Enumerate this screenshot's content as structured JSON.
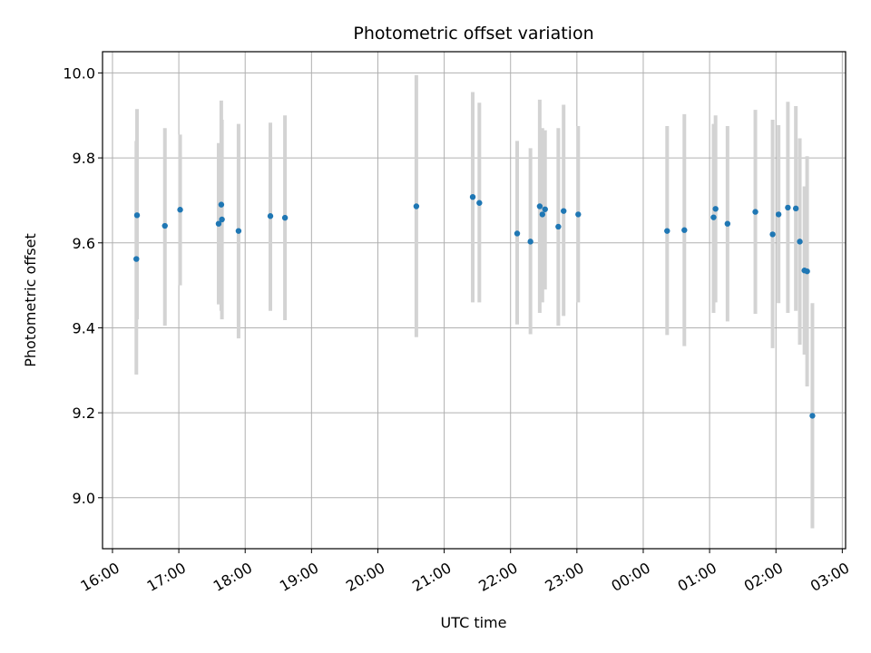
{
  "chart_data": {
    "type": "scatter",
    "title": "Photometric offset variation",
    "xlabel": "UTC time",
    "ylabel": "Photometric offset",
    "x_unit": "hours after 16:00 UTC",
    "xlim": [
      -0.15,
      11.05
    ],
    "ylim": [
      8.88,
      10.05
    ],
    "x_ticks": [
      0,
      1,
      2,
      3,
      4,
      5,
      6,
      7,
      8,
      9,
      10,
      11
    ],
    "x_tick_labels": [
      "16:00",
      "17:00",
      "18:00",
      "19:00",
      "20:00",
      "21:00",
      "22:00",
      "23:00",
      "00:00",
      "01:00",
      "02:00",
      "03:00"
    ],
    "y_ticks": [
      9.0,
      9.2,
      9.4,
      9.6,
      9.8,
      10.0
    ],
    "y_tick_labels": [
      "9.0",
      "9.2",
      "9.4",
      "9.6",
      "9.8",
      "10.0"
    ],
    "grid": true,
    "colors": {
      "point": "#1f77b4",
      "errorbar": "#d3d3d3",
      "grid": "#b0b0b0"
    },
    "series": [
      {
        "points": [
          {
            "x": 0.36,
            "y": 9.562,
            "err_lo": 9.29,
            "err_hi": 9.84
          },
          {
            "x": 0.37,
            "y": 9.665,
            "err_lo": 9.42,
            "err_hi": 9.915
          },
          {
            "x": 0.79,
            "y": 9.64,
            "err_lo": 9.405,
            "err_hi": 9.87
          },
          {
            "x": 1.02,
            "y": 9.678,
            "err_lo": 9.5,
            "err_hi": 9.855
          },
          {
            "x": 1.6,
            "y": 9.645,
            "err_lo": 9.455,
            "err_hi": 9.835
          },
          {
            "x": 1.64,
            "y": 9.69,
            "err_lo": 9.44,
            "err_hi": 9.935
          },
          {
            "x": 1.65,
            "y": 9.655,
            "err_lo": 9.42,
            "err_hi": 9.89
          },
          {
            "x": 1.9,
            "y": 9.628,
            "err_lo": 9.375,
            "err_hi": 9.88
          },
          {
            "x": 2.38,
            "y": 9.663,
            "err_lo": 9.44,
            "err_hi": 9.883
          },
          {
            "x": 2.6,
            "y": 9.659,
            "err_lo": 9.418,
            "err_hi": 9.9
          },
          {
            "x": 4.58,
            "y": 9.686,
            "err_lo": 9.378,
            "err_hi": 9.995
          },
          {
            "x": 5.43,
            "y": 9.708,
            "err_lo": 9.46,
            "err_hi": 9.955
          },
          {
            "x": 5.53,
            "y": 9.694,
            "err_lo": 9.46,
            "err_hi": 9.93
          },
          {
            "x": 6.1,
            "y": 9.622,
            "err_lo": 9.408,
            "err_hi": 9.84
          },
          {
            "x": 6.3,
            "y": 9.603,
            "err_lo": 9.385,
            "err_hi": 9.823
          },
          {
            "x": 6.44,
            "y": 9.686,
            "err_lo": 9.435,
            "err_hi": 9.937
          },
          {
            "x": 6.48,
            "y": 9.667,
            "err_lo": 9.46,
            "err_hi": 9.87
          },
          {
            "x": 6.52,
            "y": 9.679,
            "err_lo": 9.49,
            "err_hi": 9.865
          },
          {
            "x": 6.72,
            "y": 9.638,
            "err_lo": 9.405,
            "err_hi": 9.87
          },
          {
            "x": 6.8,
            "y": 9.675,
            "err_lo": 9.428,
            "err_hi": 9.925
          },
          {
            "x": 7.02,
            "y": 9.667,
            "err_lo": 9.46,
            "err_hi": 9.875
          },
          {
            "x": 8.36,
            "y": 9.628,
            "err_lo": 9.383,
            "err_hi": 9.875
          },
          {
            "x": 8.62,
            "y": 9.63,
            "err_lo": 9.357,
            "err_hi": 9.903
          },
          {
            "x": 9.06,
            "y": 9.66,
            "err_lo": 9.435,
            "err_hi": 9.88
          },
          {
            "x": 9.09,
            "y": 9.68,
            "err_lo": 9.46,
            "err_hi": 9.9
          },
          {
            "x": 9.27,
            "y": 9.645,
            "err_lo": 9.415,
            "err_hi": 9.875
          },
          {
            "x": 9.69,
            "y": 9.673,
            "err_lo": 9.433,
            "err_hi": 9.913
          },
          {
            "x": 9.95,
            "y": 9.62,
            "err_lo": 9.352,
            "err_hi": 9.89
          },
          {
            "x": 10.04,
            "y": 9.667,
            "err_lo": 9.458,
            "err_hi": 9.877
          },
          {
            "x": 10.18,
            "y": 9.683,
            "err_lo": 9.435,
            "err_hi": 9.932
          },
          {
            "x": 10.3,
            "y": 9.681,
            "err_lo": 9.44,
            "err_hi": 9.922
          },
          {
            "x": 10.36,
            "y": 9.603,
            "err_lo": 9.36,
            "err_hi": 9.846
          },
          {
            "x": 10.43,
            "y": 9.535,
            "err_lo": 9.337,
            "err_hi": 9.733
          },
          {
            "x": 10.47,
            "y": 9.533,
            "err_lo": 9.262,
            "err_hi": 9.804
          },
          {
            "x": 10.55,
            "y": 9.193,
            "err_lo": 8.928,
            "err_hi": 9.458
          }
        ]
      }
    ]
  }
}
